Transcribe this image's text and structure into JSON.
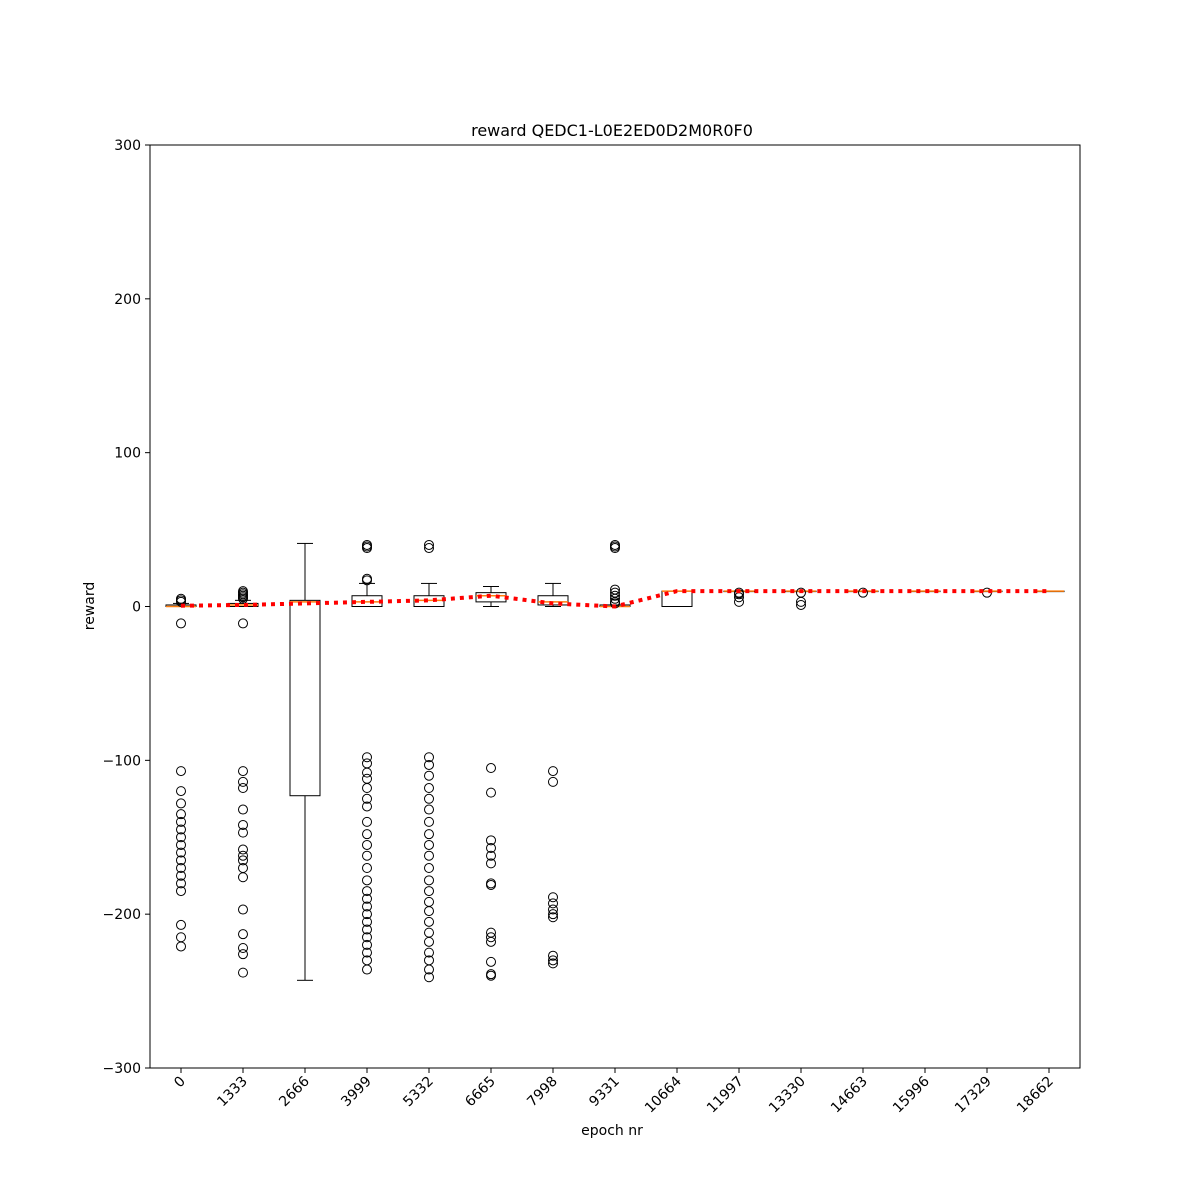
{
  "chart_data": {
    "type": "boxplot",
    "title": "reward QEDC1-L0E2ED0D2M0R0F0",
    "x_label": "epoch nr",
    "y_label": "reward",
    "categories": [
      "0",
      "1333",
      "2666",
      "3999",
      "5332",
      "6665",
      "7998",
      "9331",
      "10664",
      "11997",
      "13330",
      "14663",
      "15996",
      "17329",
      "18662"
    ],
    "ylim": [
      -300,
      300
    ],
    "yticks": [
      {
        "value": -300,
        "label": "−300"
      },
      {
        "value": -200,
        "label": "−200"
      },
      {
        "value": -100,
        "label": "−100"
      },
      0,
      100,
      200,
      300
    ],
    "box_color": "#000000",
    "median_color": "#ff7f0e",
    "mean_color": "#ff0000",
    "boxes": [
      {
        "whislo": 0,
        "q1": 0,
        "med": 0,
        "q3": 1,
        "whishi": 2,
        "mean": 0.5,
        "fliers": [
          3,
          4,
          5,
          -11,
          -107,
          -120,
          -128,
          -135,
          -140,
          -145,
          -150,
          -155,
          -160,
          -165,
          -170,
          -175,
          -180,
          -185,
          -207,
          -215,
          -221
        ]
      },
      {
        "whislo": 0,
        "q1": 0,
        "med": 1,
        "q3": 2,
        "whishi": 4,
        "mean": 1,
        "fliers": [
          5,
          6,
          7,
          8,
          9,
          10,
          -11,
          -107,
          -114,
          -118,
          -132,
          -142,
          -147,
          -158,
          -162,
          -165,
          -170,
          -176,
          -197,
          -213,
          -222,
          -226,
          -238
        ]
      },
      {
        "whislo": -243,
        "q1": -123,
        "med": 3,
        "q3": 4,
        "whishi": 41,
        "mean": 2,
        "fliers": []
      },
      {
        "whislo": 0,
        "q1": 0,
        "med": 3,
        "q3": 7,
        "whishi": 15,
        "mean": 3,
        "fliers": [
          17,
          18,
          38,
          39,
          40,
          -98,
          -102,
          -108,
          -112,
          -118,
          -125,
          -130,
          -140,
          -148,
          -155,
          -162,
          -170,
          -178,
          -185,
          -190,
          -195,
          -200,
          -205,
          -210,
          -215,
          -220,
          -225,
          -230,
          -236
        ]
      },
      {
        "whislo": 0,
        "q1": 0,
        "med": 4,
        "q3": 7,
        "whishi": 15,
        "mean": 4,
        "fliers": [
          38,
          40,
          -98,
          -103,
          -110,
          -118,
          -125,
          -132,
          -140,
          -148,
          -155,
          -162,
          -170,
          -178,
          -185,
          -192,
          -198,
          -205,
          -212,
          -218,
          -225,
          -230,
          -236,
          -241
        ]
      },
      {
        "whislo": 0,
        "q1": 3,
        "med": 7,
        "q3": 9,
        "whishi": 13,
        "mean": 7,
        "fliers": [
          -105,
          -121,
          -152,
          -157,
          -162,
          -167,
          -180,
          -181,
          -212,
          -215,
          -218,
          -231,
          -239,
          -240
        ]
      },
      {
        "whislo": 0,
        "q1": 1,
        "med": 3,
        "q3": 7,
        "whishi": 15,
        "mean": 2,
        "fliers": [
          -107,
          -114,
          -189,
          -193,
          -197,
          -200,
          -202,
          -227,
          -230,
          -232
        ]
      },
      {
        "whislo": 0,
        "q1": 0,
        "med": 0,
        "q3": 1,
        "whishi": 1,
        "mean": 0,
        "fliers": [
          2,
          3,
          5,
          7,
          9,
          11,
          38,
          39,
          40
        ]
      },
      {
        "whislo": 0,
        "q1": 0,
        "med": 10,
        "q3": 10,
        "whishi": 10,
        "mean": 10,
        "fliers": []
      },
      {
        "whislo": 10,
        "q1": 10,
        "med": 10,
        "q3": 10,
        "whishi": 10,
        "mean": 10,
        "fliers": [
          3,
          6,
          8,
          9
        ]
      },
      {
        "whislo": 10,
        "q1": 10,
        "med": 10,
        "q3": 10,
        "whishi": 10,
        "mean": 10,
        "fliers": [
          1,
          3,
          9
        ]
      },
      {
        "whislo": 10,
        "q1": 10,
        "med": 10,
        "q3": 10,
        "whishi": 10,
        "mean": 10,
        "fliers": [
          9
        ]
      },
      {
        "whislo": 10,
        "q1": 10,
        "med": 10,
        "q3": 10,
        "whishi": 10,
        "mean": 10,
        "fliers": []
      },
      {
        "whislo": 10,
        "q1": 10,
        "med": 10,
        "q3": 10,
        "whishi": 10,
        "mean": 10,
        "fliers": [
          9
        ]
      },
      {
        "whislo": 10,
        "q1": 10,
        "med": 10,
        "q3": 10,
        "whishi": 10,
        "mean": 10,
        "fliers": []
      }
    ]
  }
}
